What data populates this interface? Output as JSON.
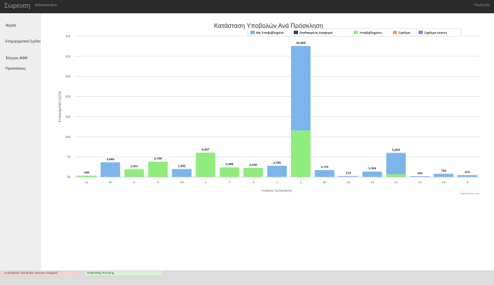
{
  "app": {
    "brand": "Σωρευση",
    "nav_link": "Administration",
    "user_link": "TheFronts"
  },
  "sidebar": {
    "items": [
      {
        "label": "Αρχική"
      },
      {
        "label": "Επιχειρηματικά Σχέδια"
      },
      {
        "label": "Έλεγχος ΑΦΜ"
      },
      {
        "label": "Προσκλήσεις"
      }
    ]
  },
  "status_bar": {
    "windows_service": {
      "label": "Cumulation Windows Service",
      "state": "Stopped"
    },
    "rabbitmq": {
      "label": "RabbitMQ",
      "state": "Running"
    }
  },
  "colors": {
    "s0": "#7cb5ec",
    "s1": "#434348",
    "s2": "#90ed7d",
    "s3": "#f7a35c",
    "s4": "#8085e9"
  },
  "chart_data": {
    "type": "bar",
    "title": "Κατάσταση Υποβολών Ανά Πρόσκληση",
    "xlabel": "Κωδικός Πρόσκλησης",
    "ylabel": "Επιχειρηματικά Σχέδια",
    "ylim": [
      0,
      35000
    ],
    "yticks": [
      "0k",
      "5k",
      "10k",
      "15k",
      "20k",
      "25k",
      "30k",
      "35k"
    ],
    "legend_position": "top-right",
    "credits": "Highcharts.com",
    "categories": [
      "11",
      "10",
      "6",
      "5",
      "18",
      "4",
      "7",
      "3",
      "1",
      "2",
      "20",
      "15",
      "13",
      "14",
      "12",
      "19",
      "9"
    ],
    "series": [
      {
        "name": "Μη Υποβεβλημένο",
        "values": [
          0,
          3659,
          0,
          0,
          1982,
          0,
          0,
          0,
          2785,
          21000,
          1721,
          219,
          1359,
          5300,
          194,
          794,
          470
        ]
      },
      {
        "name": "Λανθασμένη Αναφορά",
        "values": [
          0,
          0,
          0,
          0,
          0,
          0,
          0,
          0,
          0,
          0,
          0,
          0,
          0,
          0,
          0,
          0,
          0
        ]
      },
      {
        "name": "Υποβεβλημένο",
        "values": [
          348,
          0,
          1921,
          3799,
          0,
          6057,
          2389,
          2260,
          0,
          11568,
          0,
          0,
          0,
          690,
          0,
          0,
          0
        ]
      },
      {
        "name": "Σφάλμα",
        "values": [
          0,
          0,
          0,
          0,
          0,
          0,
          0,
          0,
          0,
          0,
          0,
          0,
          0,
          0,
          0,
          0,
          0
        ]
      },
      {
        "name": "Σφάλμα Λογιστ.",
        "values": [
          0,
          0,
          0,
          0,
          0,
          0,
          0,
          0,
          0,
          0,
          0,
          0,
          0,
          0,
          0,
          0,
          0
        ]
      }
    ],
    "totals": [
      "348",
      "3,659",
      "1,921",
      "3,799",
      "1,982",
      "6,057",
      "2,389",
      "2,260",
      "2,785",
      "32,568",
      "1,721",
      "219",
      "1,359",
      "5,990",
      "194",
      "794",
      "470"
    ]
  }
}
